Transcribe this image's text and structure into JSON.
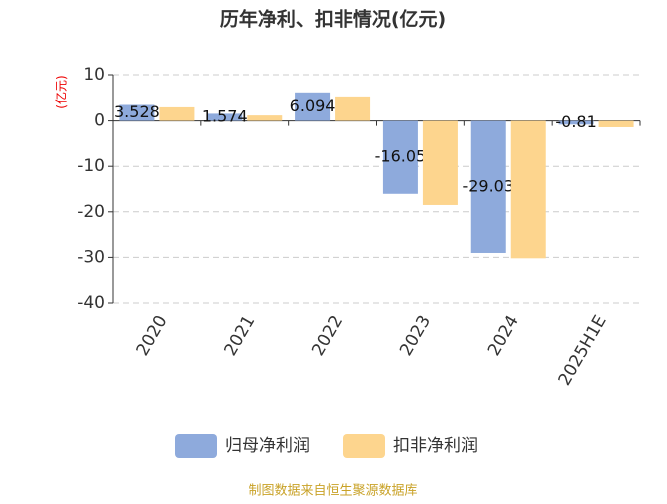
{
  "chart_data": {
    "type": "bar",
    "title": "历年净利、扣非情况(亿元)",
    "y_label": "(亿元)",
    "categories": [
      "2020",
      "2021",
      "2022",
      "2023",
      "2024",
      "2025H1E"
    ],
    "series": [
      {
        "name": "归母净利润",
        "color": "#8eaadc",
        "values": [
          3.528,
          1.574,
          6.094,
          -16.05,
          -29.03,
          -0.81
        ],
        "show_labels": true
      },
      {
        "name": "扣非净利润",
        "color": "#fdd58e",
        "values": [
          3.0,
          1.2,
          5.2,
          -18.5,
          -30.2,
          -1.4
        ],
        "show_labels": false
      }
    ],
    "ylim": [
      -40,
      10
    ],
    "yticks": [
      -40,
      -30,
      -20,
      -10,
      0,
      10
    ],
    "grid": true,
    "source": "制图数据来自恒生聚源数据库"
  }
}
